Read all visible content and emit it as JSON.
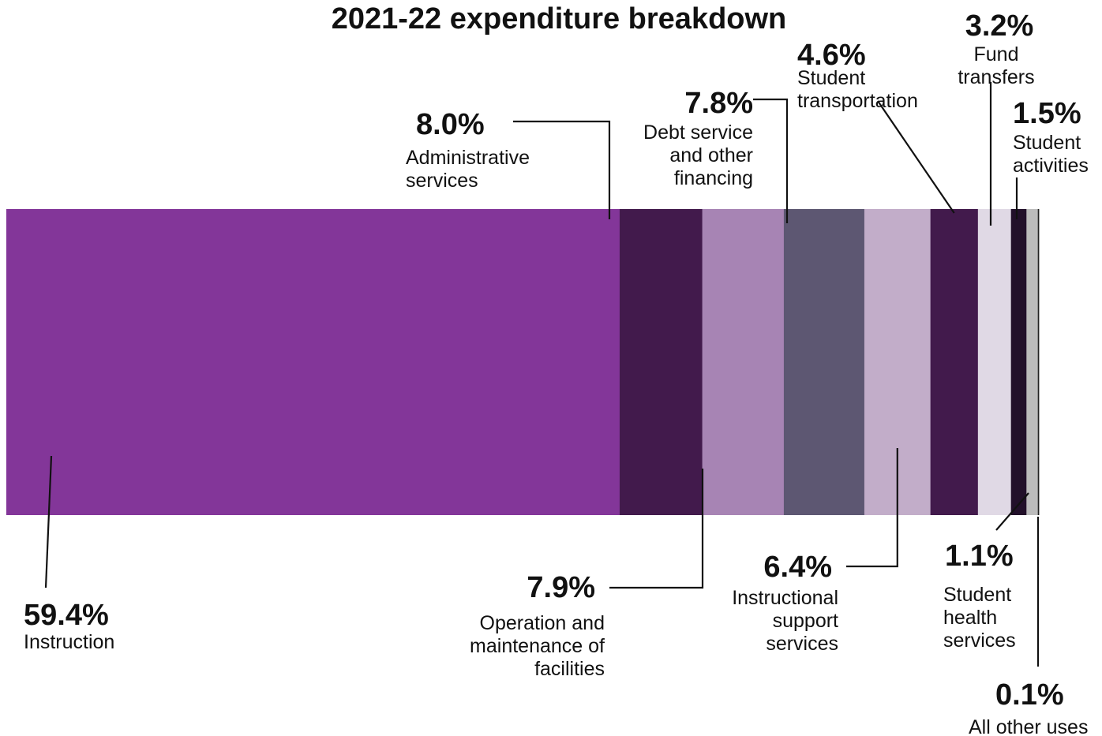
{
  "chart_data": {
    "type": "bar",
    "orientation": "horizontal-stacked-100",
    "title": "2021-22 expenditure breakdown",
    "categories": [
      "Instruction",
      "Administrative services",
      "Operation and maintenance of facilities",
      "Debt service and other financing",
      "Instructional support services",
      "Student transportation",
      "Fund transfers",
      "Student activities",
      "Student health services",
      "All other uses"
    ],
    "values": [
      59.4,
      8.0,
      7.9,
      7.8,
      6.4,
      4.6,
      3.2,
      1.5,
      1.1,
      0.1
    ],
    "value_labels": [
      "59.4%",
      "8.0%",
      "7.9%",
      "7.8%",
      "6.4%",
      "4.6%",
      "3.2%",
      "1.5%",
      "1.1%",
      "0.1%"
    ],
    "label_lines": [
      [
        "Instruction"
      ],
      [
        "Administrative",
        "services"
      ],
      [
        "Operation and",
        "maintenance of",
        "facilities"
      ],
      [
        "Debt service",
        "and other",
        "financing"
      ],
      [
        "Instructional",
        "support",
        "services"
      ],
      [
        "Student",
        "transportation"
      ],
      [
        "Fund",
        "transfers"
      ],
      [
        "Student",
        "activities"
      ],
      [
        "Student",
        "health",
        "services"
      ],
      [
        "All other uses"
      ]
    ],
    "colors": [
      "#833699",
      "#421a4c",
      "#a784b4",
      "#5d5772",
      "#c2adc9",
      "#421a4c",
      "#e0d9e5",
      "#22102a",
      "#bcbcbc",
      "#222222"
    ],
    "unit": "%"
  }
}
